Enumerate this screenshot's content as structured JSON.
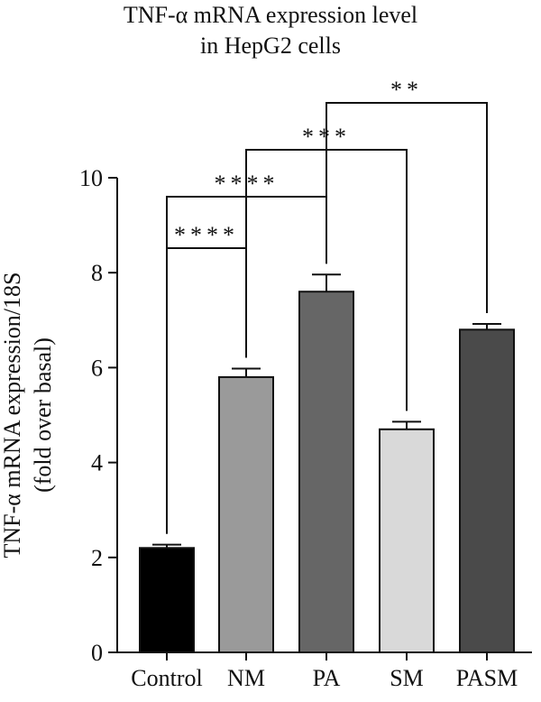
{
  "chart_data": {
    "type": "bar",
    "title_line1": "TNF-α mRNA expression level",
    "title_line2": "in HepG2 cells",
    "ylabel_line1": "TNF-α mRNA expression/18S",
    "ylabel_line2": "(fold over basal)",
    "xlabel": "",
    "ylim": [
      0,
      10
    ],
    "yticks": [
      0,
      2,
      4,
      6,
      8,
      10
    ],
    "categories": [
      "Control",
      "NM",
      "PA",
      "SM",
      "PASM"
    ],
    "values": [
      2.2,
      5.8,
      7.6,
      4.7,
      6.8
    ],
    "errors": [
      0.07,
      0.18,
      0.36,
      0.16,
      0.12
    ],
    "colors": [
      "#000000",
      "#9a9a9a",
      "#666666",
      "#d9d9d9",
      "#4a4a4a"
    ],
    "grid": false,
    "legend": "none",
    "significance": [
      {
        "from": "Control",
        "to": "NM",
        "label": "****"
      },
      {
        "from": "Control",
        "to": "PA",
        "label": "****"
      },
      {
        "from": "NM",
        "to": "SM",
        "label": "***"
      },
      {
        "from": "PA",
        "to": "PASM",
        "label": "**"
      }
    ]
  }
}
